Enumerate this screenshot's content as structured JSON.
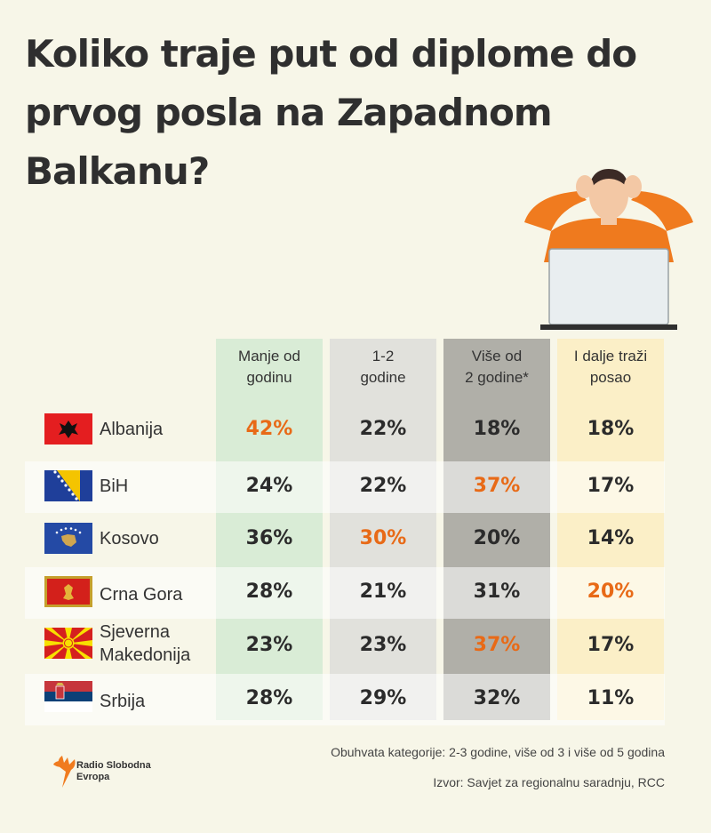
{
  "title": "Koliko traje put od diplome do prvog posla na Zapadnom Balkanu?",
  "chart_data": {
    "type": "table",
    "columns": [
      "Manje od godinu",
      "1-2 godine",
      "Više od 2 godine*",
      "I dalje traži posao"
    ],
    "column_lines": [
      [
        "Manje od",
        "godinu"
      ],
      [
        "1-2",
        "godine"
      ],
      [
        "Više od",
        "2 godine*"
      ],
      [
        "I dalje traži",
        "posao"
      ]
    ],
    "rows": [
      {
        "country": "Albanija",
        "lines": [
          "Albanija"
        ],
        "values": [
          "42%",
          "22%",
          "18%",
          "18%"
        ],
        "highlight": 0
      },
      {
        "country": "BiH",
        "lines": [
          "BiH"
        ],
        "values": [
          "24%",
          "22%",
          "37%",
          "17%"
        ],
        "highlight": 2
      },
      {
        "country": "Kosovo",
        "lines": [
          "Kosovo"
        ],
        "values": [
          "36%",
          "30%",
          "20%",
          "14%"
        ],
        "highlight": 1
      },
      {
        "country": "Crna Gora",
        "lines": [
          "Crna Gora"
        ],
        "values": [
          "28%",
          "21%",
          "31%",
          "20%"
        ],
        "highlight": 3
      },
      {
        "country": "Sjeverna Makedonija",
        "lines": [
          "Sjeverna",
          "Makedonija"
        ],
        "values": [
          "23%",
          "23%",
          "37%",
          "17%"
        ],
        "highlight": 2
      },
      {
        "country": "Srbija",
        "lines": [
          "Srbija"
        ],
        "values": [
          "28%",
          "29%",
          "32%",
          "11%"
        ],
        "highlight": null
      }
    ]
  },
  "colors": {
    "highlight": "#e86a17",
    "col_less_than_year": "#d9ecd6",
    "col_one_two_years": "#e1e1dc",
    "col_more_than_two": "#b0afa8",
    "col_still_searching": "#fbefc7",
    "background": "#f7f6e8"
  },
  "footnote": "Obuhvata kategorije: 2-3 godine, više od 3 i više od 5 godina",
  "source": "Izvor: Savjet za regionalnu saradnju, RCC",
  "logo": {
    "line1": "Radio Slobodna",
    "line2": "Evropa"
  },
  "icons": [
    "stressed-person-icon",
    "laptop-icon",
    "flag-albania-icon",
    "flag-bih-icon",
    "flag-kosovo-icon",
    "flag-montenegro-icon",
    "flag-north-macedonia-icon",
    "flag-serbia-icon",
    "rfe-logo-icon"
  ]
}
